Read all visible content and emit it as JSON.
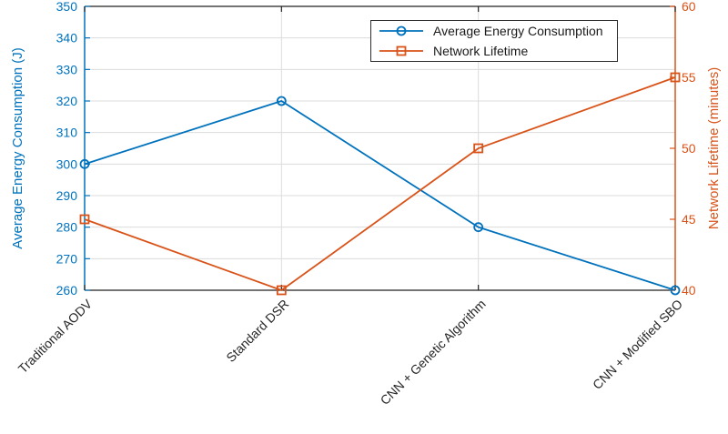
{
  "chart_data": {
    "type": "line",
    "title": "",
    "categories": [
      "Traditional AODV",
      "Standard DSR",
      "CNN + Genetic Algorithm",
      "CNN + Modified SBO"
    ],
    "series": [
      {
        "name": "Average Energy Consumption",
        "axis": "left",
        "color": "#0072BD",
        "marker": "circle",
        "values": [
          300,
          320,
          280,
          260
        ]
      },
      {
        "name": "Network Lifetime",
        "axis": "right",
        "color": "#D95319",
        "marker": "square",
        "values": [
          45,
          40,
          50,
          55
        ]
      }
    ],
    "left_axis": {
      "label": "Average Energy Consumption (J)",
      "min": 260,
      "max": 350,
      "ticks": [
        260,
        270,
        280,
        290,
        300,
        310,
        320,
        330,
        340,
        350
      ],
      "color": "#0072BD"
    },
    "right_axis": {
      "label": "Network Lifetime (minutes)",
      "min": 40,
      "max": 60,
      "ticks": [
        40,
        45,
        50,
        55,
        60
      ],
      "color": "#D95319"
    },
    "x_axis": {
      "tick_label_rotation_deg": 45,
      "tick_label_color": "#262626"
    },
    "grid": true,
    "grid_color": "#dcdcdc",
    "frame_color": "#222222",
    "legend": {
      "position": "top-center-inside",
      "border_color": "#2b2b2b"
    }
  }
}
